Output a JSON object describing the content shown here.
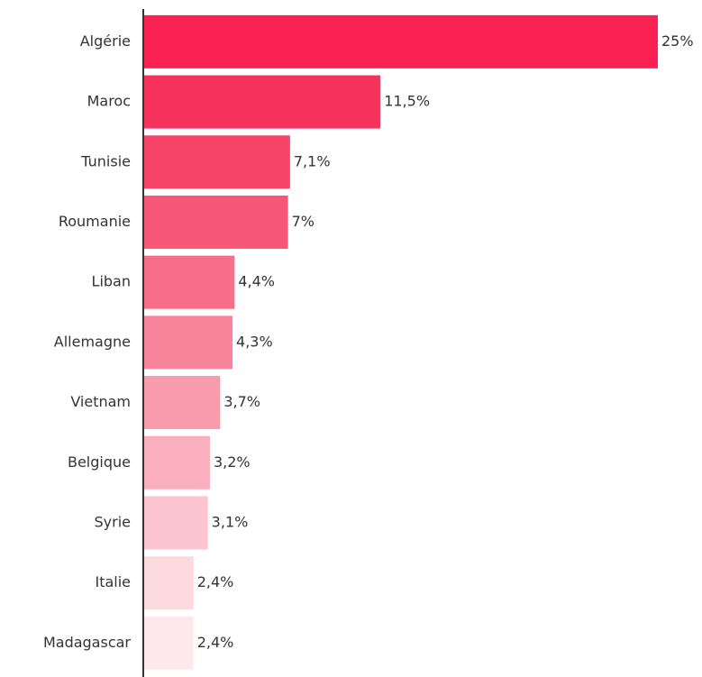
{
  "chart_data": {
    "type": "bar",
    "orientation": "horizontal",
    "categories": [
      "Algérie",
      "Maroc",
      "Tunisie",
      "Roumanie",
      "Liban",
      "Allemagne",
      "Vietnam",
      "Belgique",
      "Syrie",
      "Italie",
      "Madagascar"
    ],
    "values": [
      25,
      11.5,
      7.1,
      7,
      4.4,
      4.3,
      3.7,
      3.2,
      3.1,
      2.4,
      2.4
    ],
    "value_labels": [
      "25%",
      "11,5%",
      "7,1%",
      "7%",
      "4,4%",
      "4,3%",
      "3,7%",
      "3,2%",
      "3,1%",
      "2,4%",
      "2,4%"
    ],
    "colors": [
      "#f92152",
      "#f7325c",
      "#f64468",
      "#f65777",
      "#f66e89",
      "#f7849a",
      "#f89bac",
      "#f9afbd",
      "#fbc4cf",
      "#fcd8df",
      "#fde9ed"
    ]
  }
}
